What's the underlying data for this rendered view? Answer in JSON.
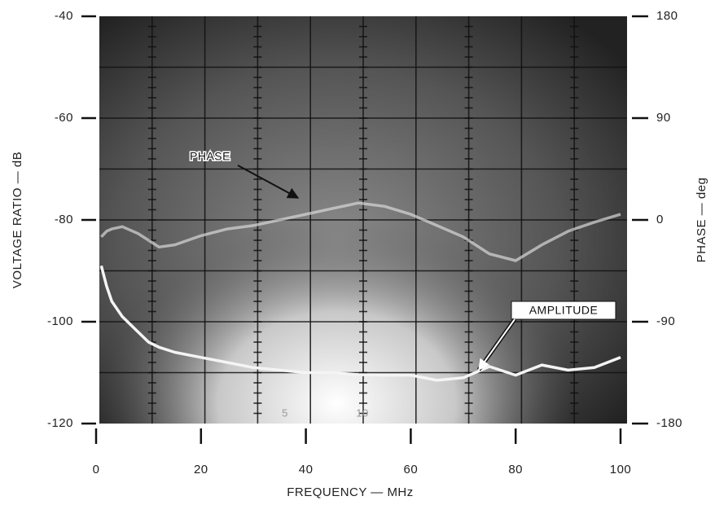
{
  "chart_data": {
    "type": "line",
    "xlabel": "FREQUENCY — MHz",
    "ylabel": "VOLTAGE RATIO — dB",
    "y2label": "PHASE — deg",
    "xlim": [
      0,
      100
    ],
    "xticks": [
      0,
      20,
      40,
      60,
      80,
      100
    ],
    "ylim": [
      -120,
      -40
    ],
    "yticks": [
      -120,
      -100,
      -80,
      -60,
      -40
    ],
    "y2lim": [
      -180,
      180
    ],
    "y2ticks": [
      -180,
      -90,
      0,
      90,
      180
    ],
    "screen_labels": [
      "5",
      "10"
    ],
    "x": [
      1,
      2,
      3,
      5,
      8,
      10,
      12,
      15,
      20,
      25,
      30,
      35,
      40,
      45,
      50,
      55,
      60,
      65,
      70,
      75,
      80,
      85,
      90,
      95,
      100
    ],
    "series": [
      {
        "name": "PHASE",
        "color": "#d8d8d8",
        "axis": "y2",
        "values": [
          -15,
          -10,
          -8,
          -6,
          -12,
          -18,
          -24,
          -22,
          -14,
          -8,
          -5,
          0,
          5,
          10,
          15,
          12,
          5,
          -5,
          -15,
          -30,
          -36,
          -22,
          -10,
          -2,
          5
        ]
      },
      {
        "name": "AMPLITUDE",
        "color": "#f4f4f4",
        "values": [
          -89,
          -93,
          -96,
          -99,
          -102,
          -104,
          -105,
          -106,
          -107,
          -108,
          -109,
          -109.5,
          -110,
          -110,
          -110.4,
          -110.5,
          -110.5,
          -111.5,
          -111,
          -108.8,
          -110.5,
          -108.5,
          -109.5,
          -109,
          -107
        ]
      }
    ]
  }
}
